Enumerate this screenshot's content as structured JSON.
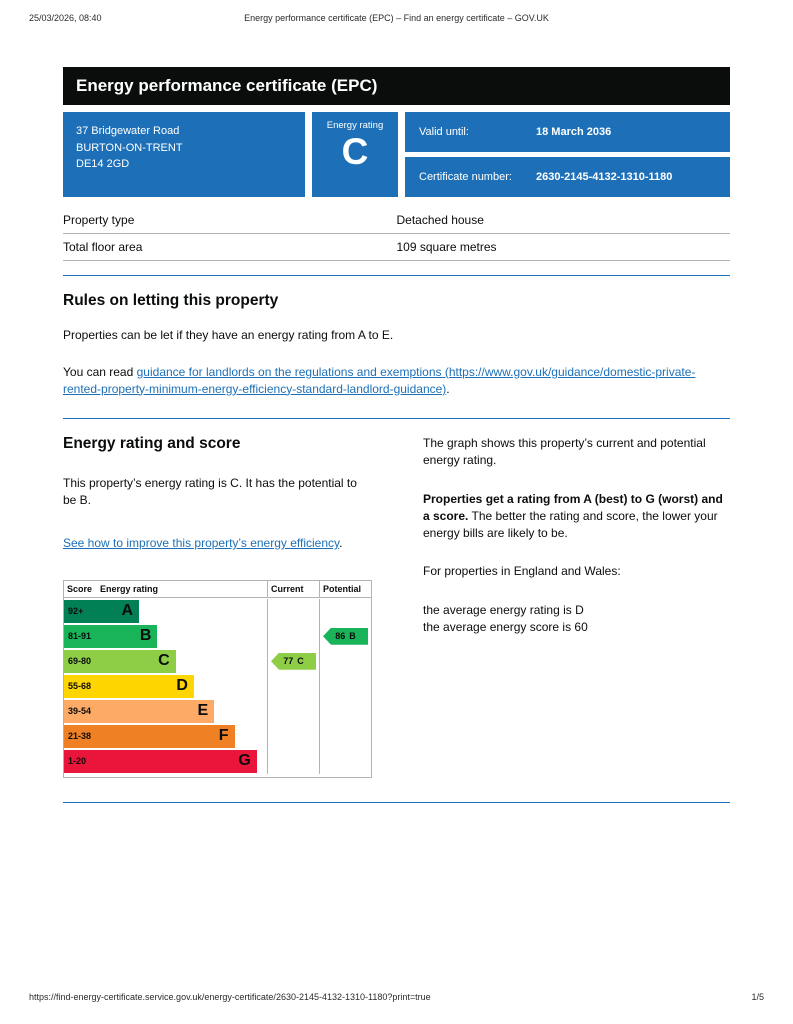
{
  "print_header": {
    "datetime": "25/03/2026, 08:40",
    "title": "Energy performance certificate (EPC) – Find an energy certificate – GOV.UK"
  },
  "banner": {
    "title": "Energy performance certificate (EPC)"
  },
  "summary": {
    "address_line1": "37 Bridgewater Road",
    "address_line2": "BURTON-ON-TRENT",
    "address_line3": "DE14 2GD",
    "energy_rating_label": "Energy rating",
    "energy_rating": "C",
    "valid_until_label": "Valid until:",
    "valid_until": "18 March 2036",
    "certificate_number_label": "Certificate number:",
    "certificate_number": "2630-2145-4132-1310-1180"
  },
  "property_table": {
    "row1_label": "Property type",
    "row1_value": "Detached house",
    "row2_label": "Total floor area",
    "row2_value": "109 square metres"
  },
  "letting": {
    "heading": "Rules on letting this property",
    "para1": "Properties can be let if they have an energy rating from A to E.",
    "para2_prefix": "You can read ",
    "para2_link": "guidance for landlords on the regulations and exemptions (https://www.gov.uk/guidance/domestic-private-rented-property-minimum-energy-efficiency-standard-landlord-guidance)",
    "para2_suffix": "."
  },
  "rating_section": {
    "heading": "Energy rating and score",
    "para1": "This property’s energy rating is C. It has the potential to be B.",
    "improve_link": "See how to improve this property’s energy efficiency",
    "improve_suffix": ".",
    "right_para1": "The graph shows this property’s current and potential energy rating.",
    "right_para2_bold": "Properties get a rating from A (best) to G (worst) and a score.",
    "right_para2_rest": " The better the rating and score, the lower your energy bills are likely to be.",
    "right_para3": "For properties in England and Wales:",
    "avg_rating_line": "the average energy rating is D",
    "avg_score_line": "the average energy score is 60"
  },
  "chart_data": {
    "type": "bar",
    "title": "Energy rating and score graph",
    "columns": [
      "Score",
      "Energy rating",
      "Current",
      "Potential"
    ],
    "bands": [
      {
        "score": "92+",
        "letter": "A",
        "color": "#008054",
        "width_pct": 37
      },
      {
        "score": "81-91",
        "letter": "B",
        "color": "#19b459",
        "width_pct": 46
      },
      {
        "score": "69-80",
        "letter": "C",
        "color": "#8dce46",
        "width_pct": 55
      },
      {
        "score": "55-68",
        "letter": "D",
        "color": "#ffd500",
        "width_pct": 64
      },
      {
        "score": "39-54",
        "letter": "E",
        "color": "#fcaa65",
        "width_pct": 74
      },
      {
        "score": "21-38",
        "letter": "F",
        "color": "#ef8023",
        "width_pct": 84
      },
      {
        "score": "1-20",
        "letter": "G",
        "color": "#e9153b",
        "width_pct": 95
      }
    ],
    "current": {
      "score": 77,
      "letter": "C",
      "band_index": 2,
      "color": "#8dce46"
    },
    "potential": {
      "score": 86,
      "letter": "B",
      "band_index": 1,
      "color": "#19b459"
    }
  },
  "footer": {
    "url": "https://find-energy-certificate.service.gov.uk/energy-certificate/2630-2145-4132-1310-1180?print=true",
    "page_indicator": "1/5"
  }
}
